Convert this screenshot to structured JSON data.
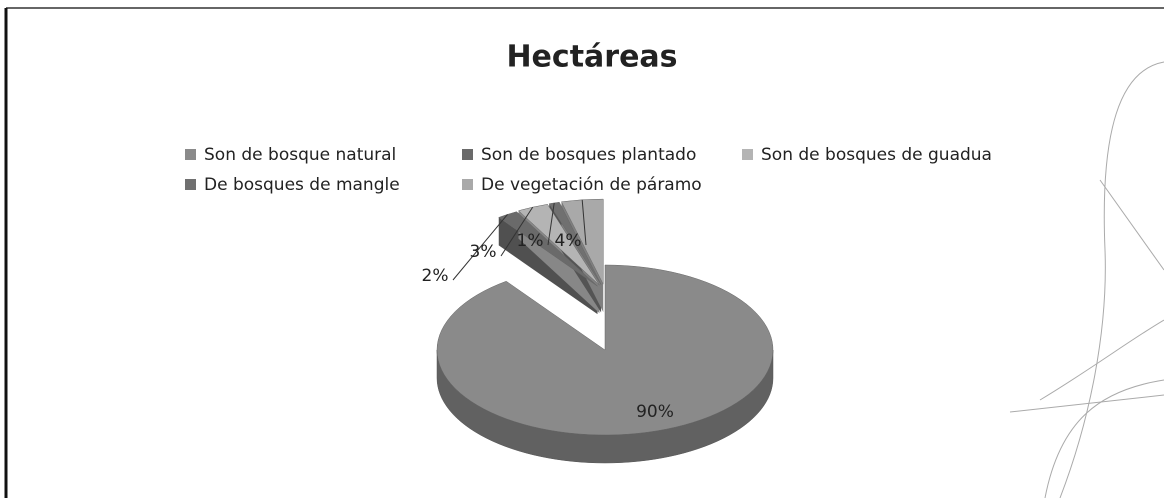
{
  "chart_data": {
    "type": "pie",
    "title": "Hectáreas",
    "categories": [
      "Son de bosque natural",
      "Son de bosques plantado",
      "Son de bosques de guadua",
      "De bosques de mangle",
      "De vegetación de páramo"
    ],
    "values": [
      90,
      2,
      3,
      1,
      4
    ],
    "value_labels": [
      "90%",
      "2%",
      "3%",
      "1%",
      "4%"
    ],
    "colors": [
      "#8a8a8a",
      "#6a6a6a",
      "#b4b4b4",
      "#707070",
      "#a9a9a9"
    ],
    "legend": "top"
  }
}
